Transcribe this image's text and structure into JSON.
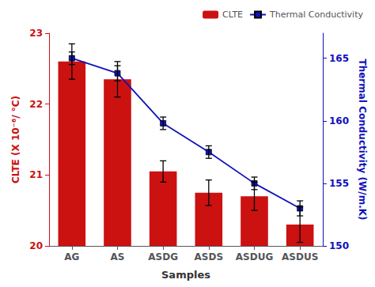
{
  "chart_data": {
    "type": "bar",
    "xlabel": "Samples",
    "ylabel": "CLTE (X 10⁻⁶/ °C)",
    "y2label": "Thermal Conductivity (W/m.K)",
    "categories": [
      "AG",
      "AS",
      "ASDG",
      "ASDS",
      "ASDUG",
      "ASDUS"
    ],
    "series": [
      {
        "name": "CLTE",
        "type": "bar",
        "color": "#cc1111",
        "values": [
          22.6,
          22.35,
          21.05,
          20.75,
          20.7,
          20.3
        ],
        "errors": [
          0.25,
          0.25,
          0.15,
          0.18,
          0.2,
          0.25
        ]
      },
      {
        "name": "Thermal Conductivity",
        "type": "line",
        "axis": "y2",
        "color": "#1111bb",
        "marker": "square",
        "values": [
          165.0,
          163.8,
          159.8,
          157.5,
          155.0,
          153.0
        ],
        "errors": [
          0.5,
          0.6,
          0.5,
          0.5,
          0.5,
          0.6
        ]
      }
    ],
    "ylim": [
      20,
      23
    ],
    "yticks": [
      20,
      21,
      22,
      23
    ],
    "y2lim": [
      150,
      167
    ],
    "y2ticks": [
      150,
      155,
      160,
      165
    ],
    "legend": "upper right",
    "grid": false
  }
}
